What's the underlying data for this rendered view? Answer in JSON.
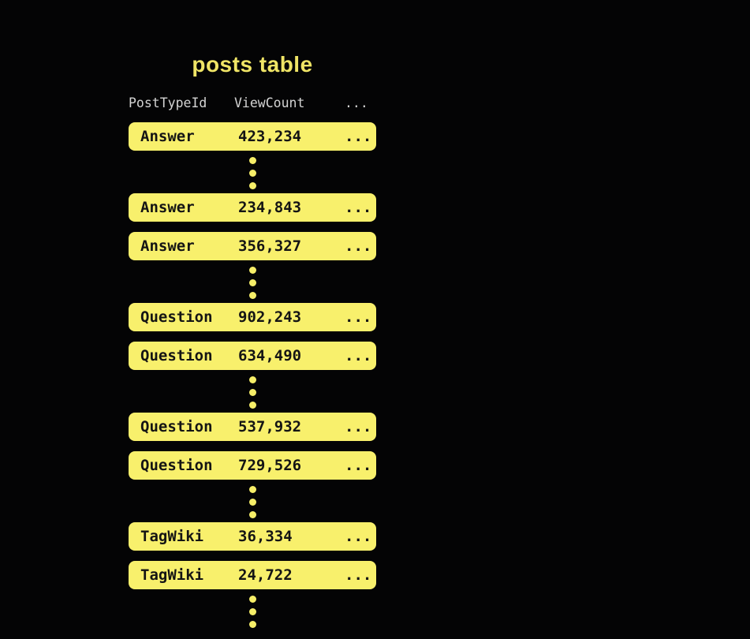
{
  "diagram": {
    "title": "posts table",
    "headers": [
      "PostTypeId",
      "ViewCount",
      "..."
    ],
    "row_ellipsis": "...",
    "groups": [
      {
        "rows": [
          {
            "post_type": "Answer",
            "view_count": "423,234"
          }
        ]
      },
      {
        "rows": [
          {
            "post_type": "Answer",
            "view_count": "234,843"
          },
          {
            "post_type": "Answer",
            "view_count": "356,327"
          }
        ]
      },
      {
        "rows": [
          {
            "post_type": "Question",
            "view_count": "902,243"
          },
          {
            "post_type": "Question",
            "view_count": "634,490"
          }
        ]
      },
      {
        "rows": [
          {
            "post_type": "Question",
            "view_count": "537,932"
          },
          {
            "post_type": "Question",
            "view_count": "729,526"
          }
        ]
      },
      {
        "rows": [
          {
            "post_type": "TagWiki",
            "view_count": "36,334"
          },
          {
            "post_type": "TagWiki",
            "view_count": "24,722"
          }
        ]
      }
    ],
    "dots_per_separator": 3,
    "colors": {
      "background": "#040405",
      "title": "#F0E566",
      "row_fill": "#F8F06C",
      "row_text": "#141414",
      "header_text": "#D4D4D4",
      "dot": "#F6EE68"
    }
  }
}
